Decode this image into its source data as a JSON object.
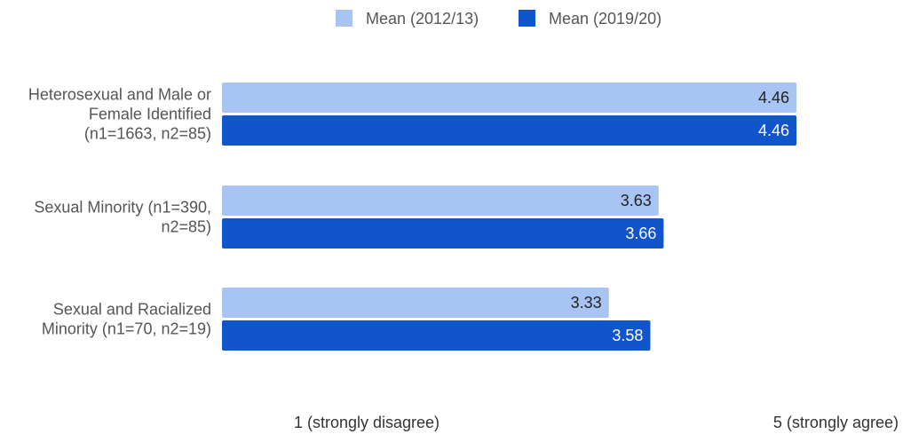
{
  "chart_data": {
    "type": "bar",
    "orientation": "horizontal",
    "title": "",
    "xlabel": "",
    "ylabel": "",
    "categories": [
      [
        "Heterosexual and Male or",
        "Female Identified",
        "(n1=1663, n2=85)"
      ],
      [
        "Sexual Minority (n1=390,",
        "n2=85)"
      ],
      [
        "Sexual and Racialized",
        "Minority (n1=70, n2=19)"
      ]
    ],
    "series": [
      {
        "name": "Mean (2012/13)",
        "color": "#a8c4f2",
        "label_color": "#222222",
        "values": [
          4.46,
          3.63,
          3.33
        ]
      },
      {
        "name": "Mean (2019/20)",
        "color": "#1155cc",
        "label_color": "#ffffff",
        "values": [
          4.46,
          3.66,
          3.58
        ]
      }
    ],
    "xlim": [
      1,
      5
    ],
    "x_axis_labels": [
      "1 (strongly disagree)",
      "5 (strongly agree)"
    ],
    "legend_position": "top-center",
    "grid": false
  }
}
